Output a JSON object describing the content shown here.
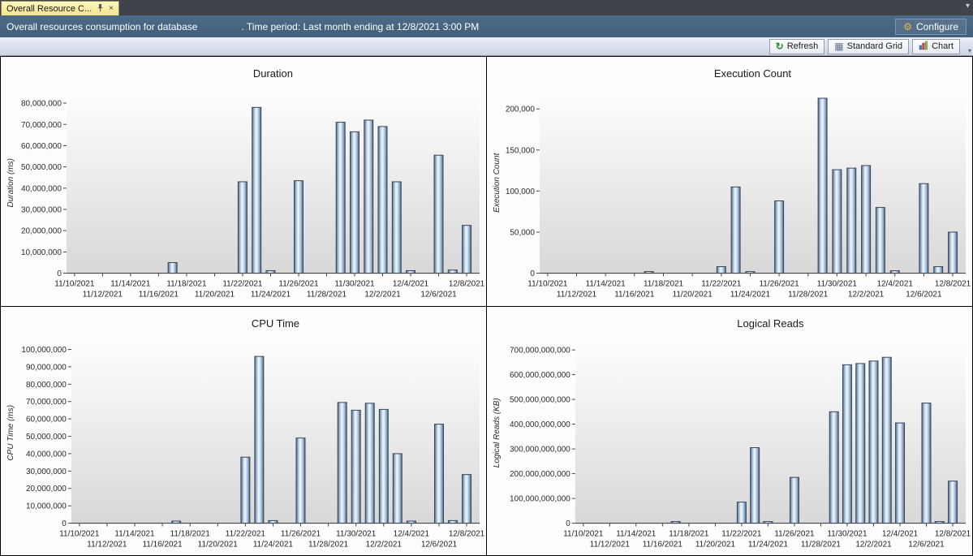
{
  "window": {
    "tab": {
      "title": "Overall Resource C...",
      "close_glyph": "×"
    },
    "tabstrip_caret": "▾"
  },
  "header": {
    "text_before": "Overall resources consumption for database",
    "text_after": ". Time period: Last month ending at 12/8/2021 3:00 PM",
    "configure_label": "Configure",
    "gear_glyph": "⚙"
  },
  "toolbar": {
    "refresh_label": "Refresh",
    "standard_grid_label": "Standard Grid",
    "chart_label": "Chart",
    "refresh_glyph": "↻",
    "grid_glyph": "▦",
    "overflow_caret": "▾"
  },
  "colors": {
    "bar_edge": "#39465a",
    "bar_dark": "#4e6c8d",
    "bar_light": "#eef4fb",
    "header_blue": "#45617d",
    "tab_yellow": "#f8eda0"
  },
  "x_axis": {
    "start_date": "11/10/2021",
    "day_span": 28,
    "ticks": [
      {
        "label": "11/10/2021",
        "day": 0,
        "row": 1
      },
      {
        "label": "11/12/2021",
        "day": 2,
        "row": 2
      },
      {
        "label": "11/14/2021",
        "day": 4,
        "row": 1
      },
      {
        "label": "11/16/2021",
        "day": 6,
        "row": 2
      },
      {
        "label": "11/18/2021",
        "day": 8,
        "row": 1
      },
      {
        "label": "11/20/2021",
        "day": 10,
        "row": 2
      },
      {
        "label": "11/22/2021",
        "day": 12,
        "row": 1
      },
      {
        "label": "11/24/2021",
        "day": 14,
        "row": 2
      },
      {
        "label": "11/26/2021",
        "day": 16,
        "row": 1
      },
      {
        "label": "11/28/2021",
        "day": 18,
        "row": 2
      },
      {
        "label": "11/30/2021",
        "day": 20,
        "row": 1
      },
      {
        "label": "12/2/2021",
        "day": 22,
        "row": 2
      },
      {
        "label": "12/4/2021",
        "day": 24,
        "row": 1
      },
      {
        "label": "12/6/2021",
        "day": 26,
        "row": 2
      },
      {
        "label": "12/8/2021",
        "day": 28,
        "row": 1
      }
    ]
  },
  "chart_data": [
    {
      "type": "bar",
      "title": "Duration",
      "ylabel": "Duration (ms)",
      "ylim": [
        0,
        85000000
      ],
      "ytick_interval": 10000000,
      "points": [
        {
          "date": "11/17/2021",
          "value": 5000000
        },
        {
          "date": "11/22/2021",
          "value": 43000000
        },
        {
          "date": "11/23/2021",
          "value": 78000000
        },
        {
          "date": "11/24/2021",
          "value": 1200000
        },
        {
          "date": "11/26/2021",
          "value": 43500000
        },
        {
          "date": "11/29/2021",
          "value": 71000000
        },
        {
          "date": "11/30/2021",
          "value": 66500000
        },
        {
          "date": "12/1/2021",
          "value": 72000000
        },
        {
          "date": "12/2/2021",
          "value": 69000000
        },
        {
          "date": "12/3/2021",
          "value": 43000000
        },
        {
          "date": "12/4/2021",
          "value": 1200000
        },
        {
          "date": "12/6/2021",
          "value": 55500000
        },
        {
          "date": "12/7/2021",
          "value": 1500000
        },
        {
          "date": "12/8/2021",
          "value": 22500000
        }
      ]
    },
    {
      "type": "bar",
      "title": "Execution Count",
      "ylabel": "Execution Count",
      "ylim": [
        0,
        220000
      ],
      "ytick_interval": 50000,
      "points": [
        {
          "date": "11/17/2021",
          "value": 2000
        },
        {
          "date": "11/22/2021",
          "value": 8000
        },
        {
          "date": "11/23/2021",
          "value": 105000
        },
        {
          "date": "11/24/2021",
          "value": 2000
        },
        {
          "date": "11/26/2021",
          "value": 88000
        },
        {
          "date": "11/29/2021",
          "value": 213000
        },
        {
          "date": "11/30/2021",
          "value": 126000
        },
        {
          "date": "12/1/2021",
          "value": 128000
        },
        {
          "date": "12/2/2021",
          "value": 131000
        },
        {
          "date": "12/3/2021",
          "value": 80000
        },
        {
          "date": "12/4/2021",
          "value": 3000
        },
        {
          "date": "12/6/2021",
          "value": 109000
        },
        {
          "date": "12/7/2021",
          "value": 8000
        },
        {
          "date": "12/8/2021",
          "value": 50000
        }
      ]
    },
    {
      "type": "bar",
      "title": "CPU Time",
      "ylabel": "CPU Time (ms)",
      "ylim": [
        0,
        104000000
      ],
      "ytick_interval": 10000000,
      "points": [
        {
          "date": "11/17/2021",
          "value": 1200000
        },
        {
          "date": "11/22/2021",
          "value": 38000000
        },
        {
          "date": "11/23/2021",
          "value": 96000000
        },
        {
          "date": "11/24/2021",
          "value": 1500000
        },
        {
          "date": "11/26/2021",
          "value": 49000000
        },
        {
          "date": "11/29/2021",
          "value": 69500000
        },
        {
          "date": "11/30/2021",
          "value": 65000000
        },
        {
          "date": "12/1/2021",
          "value": 69000000
        },
        {
          "date": "12/2/2021",
          "value": 65500000
        },
        {
          "date": "12/3/2021",
          "value": 40000000
        },
        {
          "date": "12/4/2021",
          "value": 1200000
        },
        {
          "date": "12/6/2021",
          "value": 57000000
        },
        {
          "date": "12/7/2021",
          "value": 1500000
        },
        {
          "date": "12/8/2021",
          "value": 28000000
        }
      ]
    },
    {
      "type": "bar",
      "title": "Logical Reads",
      "ylabel": "Logical Reads (KB)",
      "ylim": [
        0,
        730000000000
      ],
      "ytick_interval": 100000000000,
      "points": [
        {
          "date": "11/17/2021",
          "value": 2000000000
        },
        {
          "date": "11/22/2021",
          "value": 85000000000
        },
        {
          "date": "11/23/2021",
          "value": 305000000000
        },
        {
          "date": "11/24/2021",
          "value": 5000000000
        },
        {
          "date": "11/26/2021",
          "value": 185000000000
        },
        {
          "date": "11/29/2021",
          "value": 450000000000
        },
        {
          "date": "11/30/2021",
          "value": 640000000000
        },
        {
          "date": "12/1/2021",
          "value": 645000000000
        },
        {
          "date": "12/2/2021",
          "value": 655000000000
        },
        {
          "date": "12/3/2021",
          "value": 670000000000
        },
        {
          "date": "12/4/2021",
          "value": 405000000000
        },
        {
          "date": "12/6/2021",
          "value": 485000000000
        },
        {
          "date": "12/7/2021",
          "value": 6000000000
        },
        {
          "date": "12/8/2021",
          "value": 170000000000
        }
      ]
    }
  ]
}
